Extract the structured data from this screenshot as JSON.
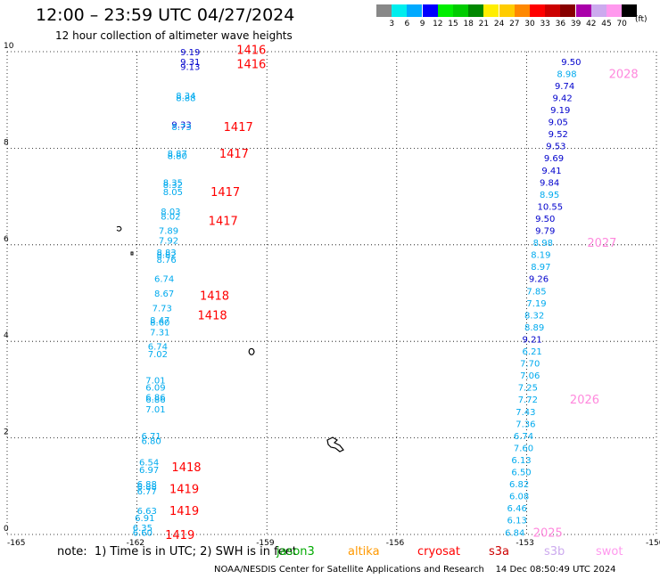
{
  "header": {
    "title": "12:00 – 23:59 UTC 04/27/2024",
    "subtitle": "12 hour collection of altimeter wave heights"
  },
  "colorbar": {
    "colors": [
      "#888888",
      "#00eeee",
      "#00aaff",
      "#0000ff",
      "#00ee00",
      "#00cc00",
      "#008800",
      "#ffee00",
      "#ffcc00",
      "#ff8800",
      "#ff0000",
      "#cc0000",
      "#880000",
      "#aa00aa",
      "#ccaaee",
      "#ff99ee",
      "#000000"
    ],
    "labels": [
      "3",
      "6",
      "9",
      "12",
      "15",
      "18",
      "21",
      "24",
      "27",
      "30",
      "33",
      "36",
      "39",
      "42",
      "45",
      "70"
    ],
    "unit": "(ft)"
  },
  "footer": {
    "note": "note:  1) Time is in UTC; 2) SWH is in feet",
    "satellites": [
      {
        "name": "jason3",
        "color": "#00aa00"
      },
      {
        "name": "altika",
        "color": "#ff9900"
      },
      {
        "name": "cryosat",
        "color": "#ff0000"
      },
      {
        "name": "s3a",
        "color": "#cc0000"
      },
      {
        "name": "s3b",
        "color": "#ccaaee"
      },
      {
        "name": "swot",
        "color": "#ff99ee"
      }
    ],
    "credit": "NOAA/NESDIS Center for Satellite Applications and Research    14 Dec 08:50:49 UTC 2024"
  },
  "chart_data": {
    "type": "scatter",
    "title": "12:00 – 23:59 UTC 04/27/2024",
    "subtitle": "12 hour collection of altimeter wave heights",
    "xlabel": "",
    "ylabel": "",
    "xlim": [
      -165,
      -150
    ],
    "ylim": [
      0,
      10
    ],
    "xticks": [
      "-165",
      "-162",
      "-159",
      "-156",
      "-153",
      "-150"
    ],
    "yticks": [
      "0",
      "2",
      "4",
      "6",
      "8",
      "10"
    ],
    "grid": true,
    "color_scale": {
      "6": "#00aaee",
      "9": "#0000cc"
    },
    "tracks": [
      {
        "points": [
          {
            "lon": -161.0,
            "lat": 10.0,
            "v": "9.19"
          },
          {
            "lon": -161.0,
            "lat": 9.8,
            "v": "9.31"
          },
          {
            "lon": -161.0,
            "lat": 9.7,
            "v": "9.13"
          },
          {
            "lon": -161.1,
            "lat": 9.1,
            "v": "8.34"
          },
          {
            "lon": -161.1,
            "lat": 9.05,
            "v": "8.88"
          },
          {
            "lon": -161.2,
            "lat": 8.5,
            "v": "9.33"
          },
          {
            "lon": -161.2,
            "lat": 8.45,
            "v": "8.73"
          },
          {
            "lon": -161.3,
            "lat": 7.9,
            "v": "8.87"
          },
          {
            "lon": -161.3,
            "lat": 7.85,
            "v": "8.80"
          },
          {
            "lon": -161.4,
            "lat": 7.3,
            "v": "8.35"
          },
          {
            "lon": -161.4,
            "lat": 7.25,
            "v": "8.32"
          },
          {
            "lon": -161.4,
            "lat": 7.1,
            "v": "8.05"
          },
          {
            "lon": -161.45,
            "lat": 6.7,
            "v": "8.03"
          },
          {
            "lon": -161.45,
            "lat": 6.6,
            "v": "8.02"
          },
          {
            "lon": -161.5,
            "lat": 6.3,
            "v": "7.89"
          },
          {
            "lon": -161.5,
            "lat": 6.1,
            "v": "7.92"
          },
          {
            "lon": -161.55,
            "lat": 5.85,
            "v": "8.83"
          },
          {
            "lon": -161.55,
            "lat": 5.8,
            "v": "8.82"
          },
          {
            "lon": -161.55,
            "lat": 5.7,
            "v": "8.76"
          },
          {
            "lon": -161.6,
            "lat": 5.3,
            "v": "6.74"
          },
          {
            "lon": -161.6,
            "lat": 5.0,
            "v": "8.67"
          },
          {
            "lon": -161.65,
            "lat": 4.7,
            "v": "7.73"
          },
          {
            "lon": -161.7,
            "lat": 4.45,
            "v": "8.47"
          },
          {
            "lon": -161.7,
            "lat": 4.4,
            "v": "8.60"
          },
          {
            "lon": -161.7,
            "lat": 4.2,
            "v": "7.31"
          },
          {
            "lon": -161.75,
            "lat": 3.9,
            "v": "6.74"
          },
          {
            "lon": -161.75,
            "lat": 3.75,
            "v": "7.02"
          },
          {
            "lon": -161.8,
            "lat": 3.2,
            "v": "7.01"
          },
          {
            "lon": -161.8,
            "lat": 3.05,
            "v": "6.09"
          },
          {
            "lon": -161.8,
            "lat": 2.85,
            "v": "6.86"
          },
          {
            "lon": -161.8,
            "lat": 2.8,
            "v": "6.86"
          },
          {
            "lon": -161.8,
            "lat": 2.6,
            "v": "7.01"
          },
          {
            "lon": -161.9,
            "lat": 2.05,
            "v": "6.71"
          },
          {
            "lon": -161.9,
            "lat": 1.95,
            "v": "6.80"
          },
          {
            "lon": -161.95,
            "lat": 1.5,
            "v": "6.54"
          },
          {
            "lon": -161.95,
            "lat": 1.35,
            "v": "6.97"
          },
          {
            "lon": -162.0,
            "lat": 1.05,
            "v": "6.88"
          },
          {
            "lon": -162.0,
            "lat": 1.0,
            "v": "6.88"
          },
          {
            "lon": -162.0,
            "lat": 0.9,
            "v": "6.77"
          },
          {
            "lon": -162.0,
            "lat": 0.5,
            "v": "6.63"
          },
          {
            "lon": -162.05,
            "lat": 0.35,
            "v": "6.91"
          },
          {
            "lon": -162.1,
            "lat": 0.15,
            "v": "6.35"
          },
          {
            "lon": -162.1,
            "lat": 0.05,
            "v": "6.60"
          }
        ],
        "time_labels": [
          {
            "lon": -159.7,
            "lat": 10.05,
            "t": "1416"
          },
          {
            "lon": -159.7,
            "lat": 9.75,
            "t": "1416"
          },
          {
            "lon": -160.0,
            "lat": 8.45,
            "t": "1417"
          },
          {
            "lon": -160.1,
            "lat": 7.9,
            "t": "1417"
          },
          {
            "lon": -160.3,
            "lat": 7.1,
            "t": "1417"
          },
          {
            "lon": -160.35,
            "lat": 6.5,
            "t": "1417"
          },
          {
            "lon": -160.55,
            "lat": 4.95,
            "t": "1418"
          },
          {
            "lon": -160.6,
            "lat": 4.55,
            "t": "1418"
          },
          {
            "lon": -161.2,
            "lat": 1.4,
            "t": "1418"
          },
          {
            "lon": -161.25,
            "lat": 0.95,
            "t": "1419"
          },
          {
            "lon": -161.25,
            "lat": 0.5,
            "t": "1419"
          },
          {
            "lon": -161.35,
            "lat": 0.0,
            "t": "1419"
          }
        ]
      },
      {
        "points": [
          {
            "lon": -152.2,
            "lat": 9.8,
            "v": "9.50"
          },
          {
            "lon": -152.3,
            "lat": 9.55,
            "v": "8.98"
          },
          {
            "lon": -152.35,
            "lat": 9.3,
            "v": "9.74"
          },
          {
            "lon": -152.4,
            "lat": 9.05,
            "v": "9.42"
          },
          {
            "lon": -152.45,
            "lat": 8.8,
            "v": "9.19"
          },
          {
            "lon": -152.5,
            "lat": 8.55,
            "v": "9.05"
          },
          {
            "lon": -152.5,
            "lat": 8.3,
            "v": "9.52"
          },
          {
            "lon": -152.55,
            "lat": 8.05,
            "v": "9.53"
          },
          {
            "lon": -152.6,
            "lat": 7.8,
            "v": "9.69"
          },
          {
            "lon": -152.65,
            "lat": 7.55,
            "v": "9.41"
          },
          {
            "lon": -152.7,
            "lat": 7.3,
            "v": "9.84"
          },
          {
            "lon": -152.7,
            "lat": 7.05,
            "v": "8.95"
          },
          {
            "lon": -152.75,
            "lat": 6.8,
            "v": "10.55"
          },
          {
            "lon": -152.8,
            "lat": 6.55,
            "v": "9.50"
          },
          {
            "lon": -152.8,
            "lat": 6.3,
            "v": "9.79"
          },
          {
            "lon": -152.85,
            "lat": 6.05,
            "v": "8.98"
          },
          {
            "lon": -152.9,
            "lat": 5.8,
            "v": "8.19"
          },
          {
            "lon": -152.9,
            "lat": 5.55,
            "v": "8.97"
          },
          {
            "lon": -152.95,
            "lat": 5.3,
            "v": "9.26"
          },
          {
            "lon": -153.0,
            "lat": 5.05,
            "v": "7.85"
          },
          {
            "lon": -153.0,
            "lat": 4.8,
            "v": "7.19"
          },
          {
            "lon": -153.05,
            "lat": 4.55,
            "v": "8.32"
          },
          {
            "lon": -153.05,
            "lat": 4.3,
            "v": "8.89"
          },
          {
            "lon": -153.1,
            "lat": 4.05,
            "v": "9.21"
          },
          {
            "lon": -153.1,
            "lat": 3.8,
            "v": "6.21"
          },
          {
            "lon": -153.15,
            "lat": 3.55,
            "v": "7.70"
          },
          {
            "lon": -153.15,
            "lat": 3.3,
            "v": "7.06"
          },
          {
            "lon": -153.2,
            "lat": 3.05,
            "v": "7.25"
          },
          {
            "lon": -153.2,
            "lat": 2.8,
            "v": "7.72"
          },
          {
            "lon": -153.25,
            "lat": 2.55,
            "v": "7.43"
          },
          {
            "lon": -153.25,
            "lat": 2.3,
            "v": "7.36"
          },
          {
            "lon": -153.3,
            "lat": 2.05,
            "v": "6.74"
          },
          {
            "lon": -153.3,
            "lat": 1.8,
            "v": "7.60"
          },
          {
            "lon": -153.35,
            "lat": 1.55,
            "v": "6.13"
          },
          {
            "lon": -153.35,
            "lat": 1.3,
            "v": "6.50"
          },
          {
            "lon": -153.4,
            "lat": 1.05,
            "v": "6.82"
          },
          {
            "lon": -153.4,
            "lat": 0.8,
            "v": "6.08"
          },
          {
            "lon": -153.45,
            "lat": 0.55,
            "v": "6.46"
          },
          {
            "lon": -153.45,
            "lat": 0.3,
            "v": "6.13"
          },
          {
            "lon": -153.5,
            "lat": 0.05,
            "v": "6.84"
          }
        ],
        "time_labels": [
          {
            "lon": -151.1,
            "lat": 9.55,
            "t": "2028"
          },
          {
            "lon": -151.6,
            "lat": 6.05,
            "t": "2027"
          },
          {
            "lon": -152.0,
            "lat": 2.8,
            "t": "2026"
          },
          {
            "lon": -152.85,
            "lat": 0.05,
            "t": "2025"
          }
        ]
      }
    ]
  }
}
